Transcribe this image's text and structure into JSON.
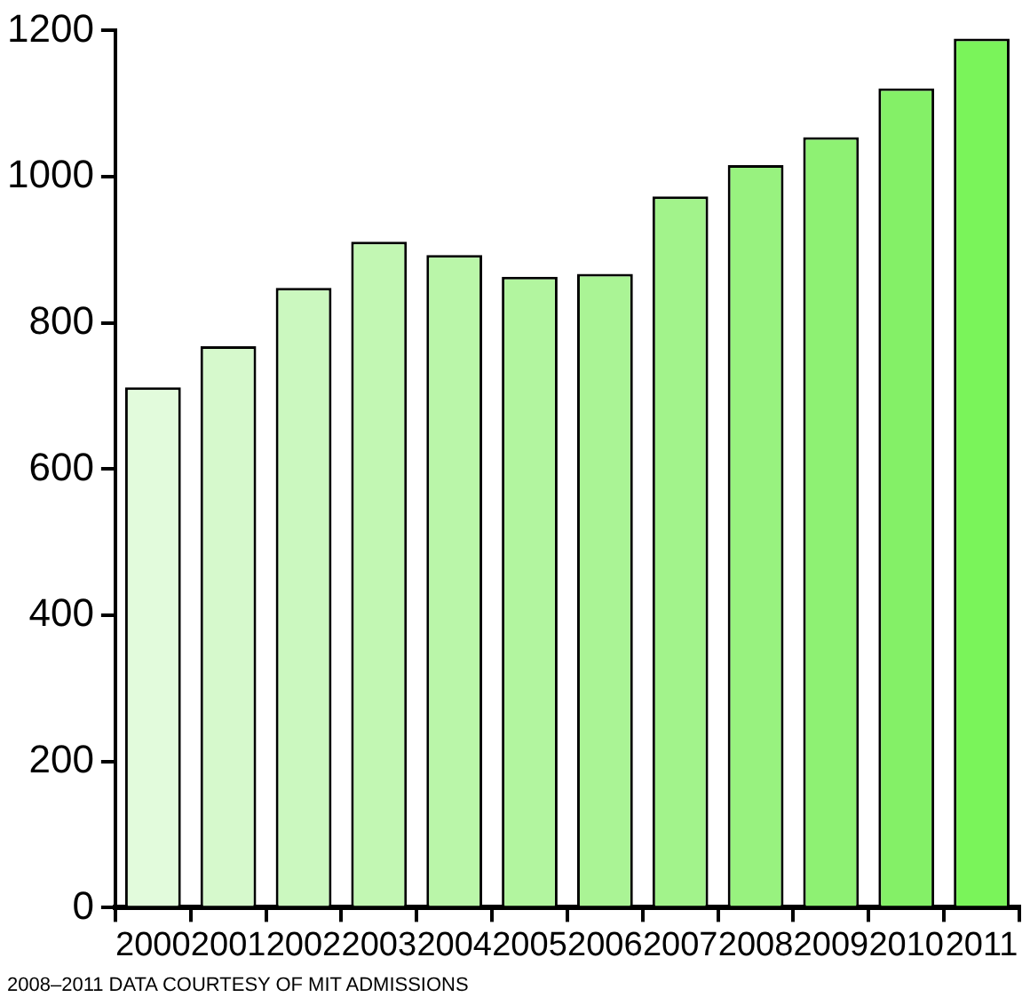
{
  "chart_data": {
    "type": "bar",
    "categories": [
      "2000",
      "2001",
      "2002",
      "2003",
      "2004",
      "2005",
      "2006",
      "2007",
      "2008",
      "2009",
      "2010",
      "2011"
    ],
    "values": [
      712,
      768,
      848,
      911,
      893,
      863,
      867,
      973,
      1016,
      1054,
      1121,
      1189
    ],
    "colors": [
      "#e2fbdc",
      "#d6f9cc",
      "#cbf8bf",
      "#c2f7b3",
      "#baf6a9",
      "#b2f59f",
      "#aaf495",
      "#a2f38b",
      "#98f27f",
      "#8ef173",
      "#84f067",
      "#7af45a"
    ],
    "ylim": [
      0,
      1200
    ],
    "yticks": [
      0,
      200,
      400,
      600,
      800,
      1000,
      1200
    ],
    "grid": false,
    "legend": false,
    "annotations": [
      "2008–2011 DATA COURTESY OF MIT ADMISSIONS"
    ]
  }
}
